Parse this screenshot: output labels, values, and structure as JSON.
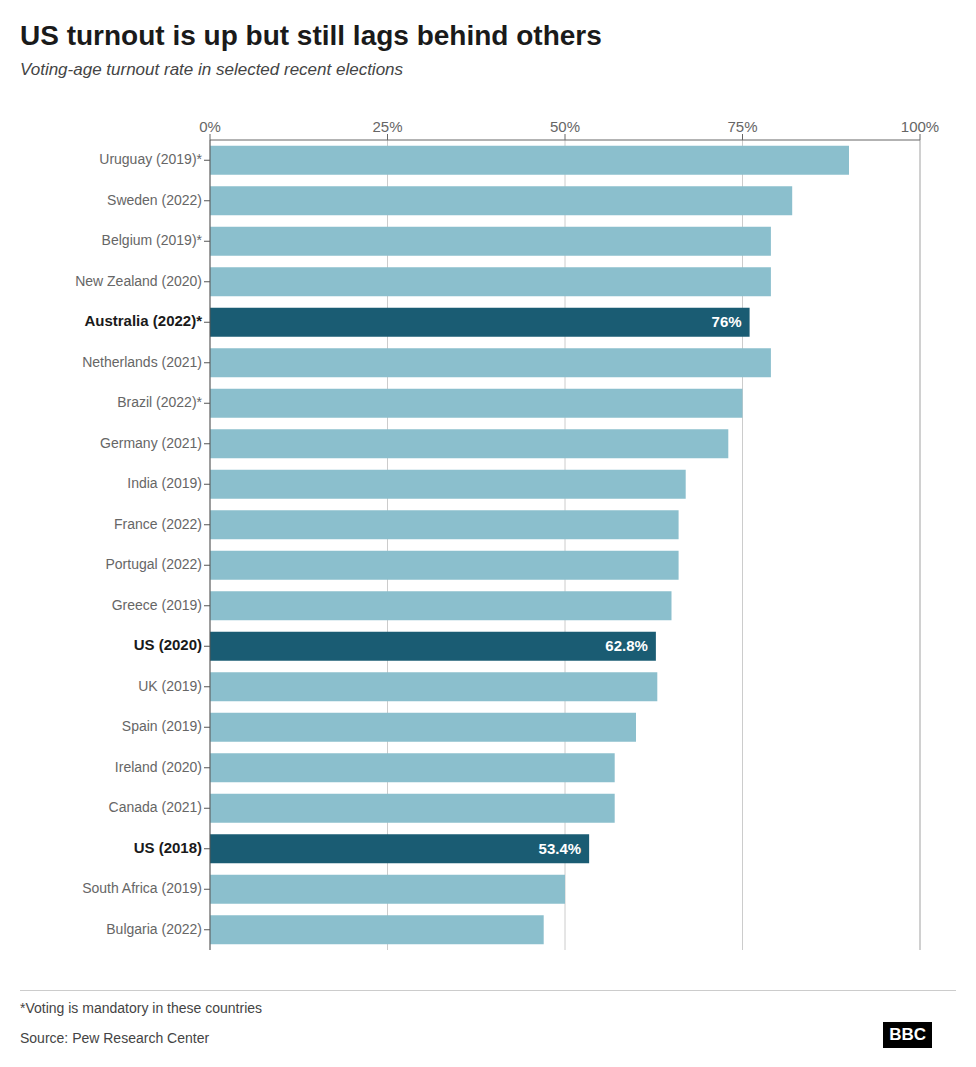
{
  "chart_data": {
    "type": "bar",
    "orientation": "horizontal",
    "title": "US turnout is up but still lags behind others",
    "subtitle": "Voting-age turnout rate in selected recent elections",
    "footnote": "*Voting is mandatory in these countries",
    "source": "Source: Pew Research Center",
    "annotations": [
      "BBC"
    ],
    "categories": [
      "Uruguay (2019)*",
      "Sweden (2022)",
      "Belgium (2019)*",
      "New Zealand (2020)",
      "Australia (2022)*",
      "Netherlands (2021)",
      "Brazil (2022)*",
      "Germany (2021)",
      "India (2019)",
      "France (2022)",
      "Portugal (2022)",
      "Greece (2019)",
      "US (2020)",
      "UK (2019)",
      "Spain (2019)",
      "Ireland (2020)",
      "Canada (2021)",
      "US (2018)",
      "South Africa (2019)",
      "Bulgaria (2022)"
    ],
    "values": [
      90,
      82,
      79,
      79,
      76,
      79,
      75,
      73,
      67,
      66,
      66,
      65,
      62.8,
      63,
      60,
      57,
      57,
      53.4,
      50,
      47
    ],
    "value_labels": [
      null,
      null,
      null,
      null,
      "76%",
      null,
      null,
      null,
      null,
      null,
      null,
      null,
      "62.8%",
      null,
      null,
      null,
      null,
      "53.4%",
      null,
      null
    ],
    "colors": [
      "#8bbfcd",
      "#8bbfcd",
      "#8bbfcd",
      "#8bbfcd",
      "#1a5c73",
      "#8bbfcd",
      "#8bbfcd",
      "#8bbfcd",
      "#8bbfcd",
      "#8bbfcd",
      "#8bbfcd",
      "#8bbfcd",
      "#1a5c73",
      "#8bbfcd",
      "#8bbfcd",
      "#8bbfcd",
      "#8bbfcd",
      "#1a5c73",
      "#8bbfcd",
      "#8bbfcd"
    ],
    "xlim": [
      0,
      100
    ],
    "xticks": [
      {
        "value": 0,
        "label": "0%"
      },
      {
        "value": 25,
        "label": "25%"
      },
      {
        "value": 50,
        "label": "50%"
      },
      {
        "value": 75,
        "label": "75%"
      },
      {
        "value": 100,
        "label": "100%"
      }
    ],
    "grid": true
  }
}
